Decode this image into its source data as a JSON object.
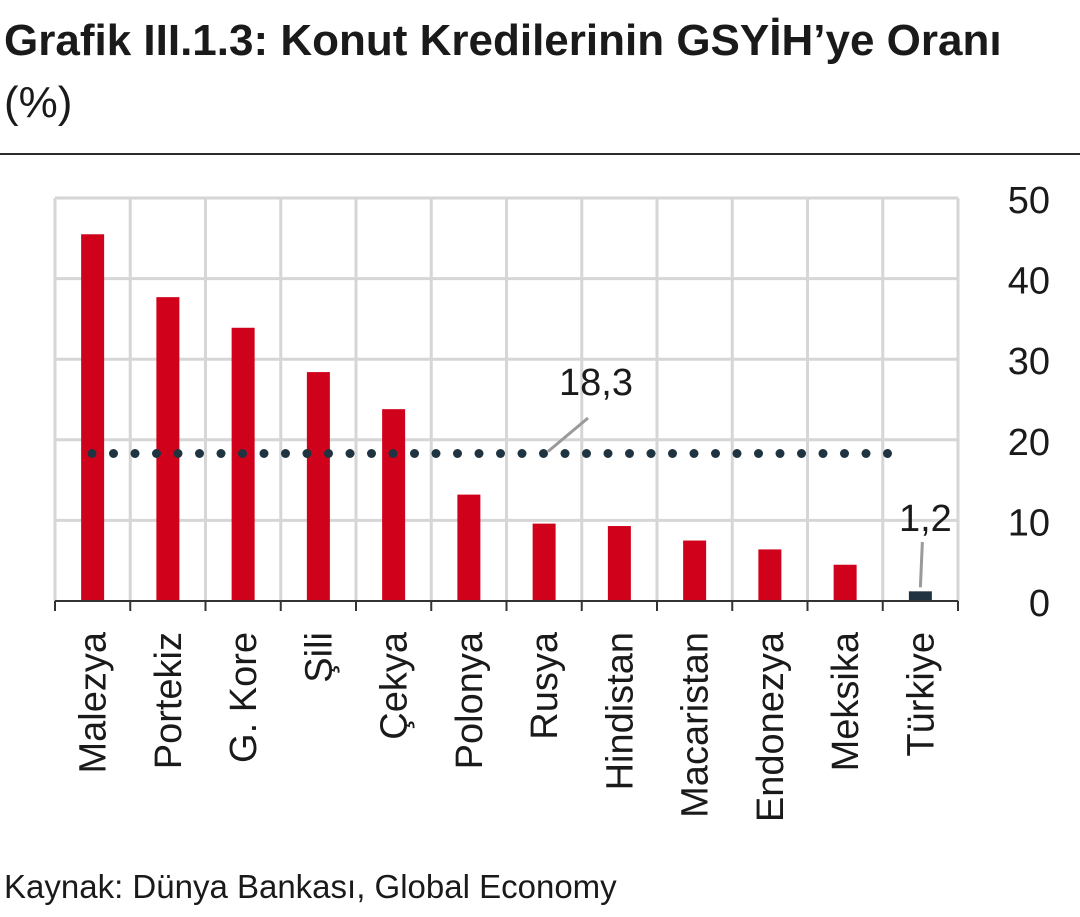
{
  "title": {
    "main": "Grafik III.1.3: Konut Kredilerinin GSYİH’ye Oranı",
    "unit": "(%)"
  },
  "source": "Kaynak: Dünya Bankası, Global Economy",
  "colors": {
    "bar": "#d0021b",
    "highlight_bar": "#1f3440",
    "average_line": "#1f3440",
    "grid": "#d6d6d6",
    "axis": "#333333"
  },
  "chart_data": {
    "type": "bar",
    "title": "Grafik III.1.3: Konut Kredilerinin GSYİH’ye Oranı (%)",
    "categories": [
      "Malezya",
      "Portekiz",
      "G. Kore",
      "Şili",
      "Çekya",
      "Polonya",
      "Rusya",
      "Hindistan",
      "Macaristan",
      "Endonezya",
      "Meksika",
      "Türkiye"
    ],
    "values": [
      45.5,
      37.7,
      33.9,
      28.4,
      23.8,
      13.2,
      9.6,
      9.3,
      7.5,
      6.4,
      4.5,
      1.2
    ],
    "highlight_category": "Türkiye",
    "average": 18.3,
    "annotations": [
      "18,3",
      "1,2"
    ],
    "yticks": [
      "0",
      "10",
      "20",
      "30",
      "40",
      "50"
    ],
    "ylim": [
      0,
      50
    ],
    "y_axis_side": "right",
    "grid": true,
    "xlabel": "",
    "ylabel": ""
  }
}
